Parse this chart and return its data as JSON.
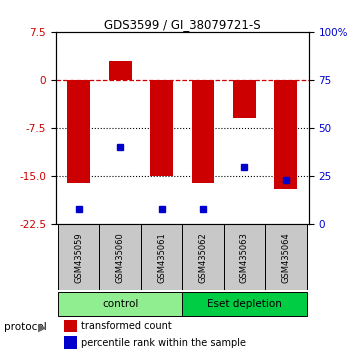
{
  "title": "GDS3599 / GI_38079721-S",
  "samples": [
    "GSM435059",
    "GSM435060",
    "GSM435061",
    "GSM435062",
    "GSM435063",
    "GSM435064"
  ],
  "red_values": [
    -16.0,
    3.0,
    -15.0,
    -16.0,
    -6.0,
    -17.0
  ],
  "blue_values_pct": [
    8,
    40,
    8,
    8,
    30,
    23
  ],
  "ylim_left": [
    -22.5,
    7.5
  ],
  "ylim_right": [
    0,
    100
  ],
  "yticks_left": [
    7.5,
    0,
    -7.5,
    -15.0,
    -22.5
  ],
  "yticks_right": [
    100,
    75,
    50,
    25,
    0
  ],
  "hlines_dotted": [
    -7.5,
    -15.0
  ],
  "hline_dash": 0,
  "groups": [
    {
      "label": "control",
      "color": "#90EE90",
      "start": 0,
      "end": 3
    },
    {
      "label": "Eset depletion",
      "color": "#00CC44",
      "start": 3,
      "end": 6
    }
  ],
  "red_color": "#CC0000",
  "blue_color": "#0000CC",
  "bar_width": 0.55,
  "legend_red": "transformed count",
  "legend_blue": "percentile rank within the sample",
  "bg_sample_color": "#C8C8C8",
  "protocol_label": "protocol"
}
